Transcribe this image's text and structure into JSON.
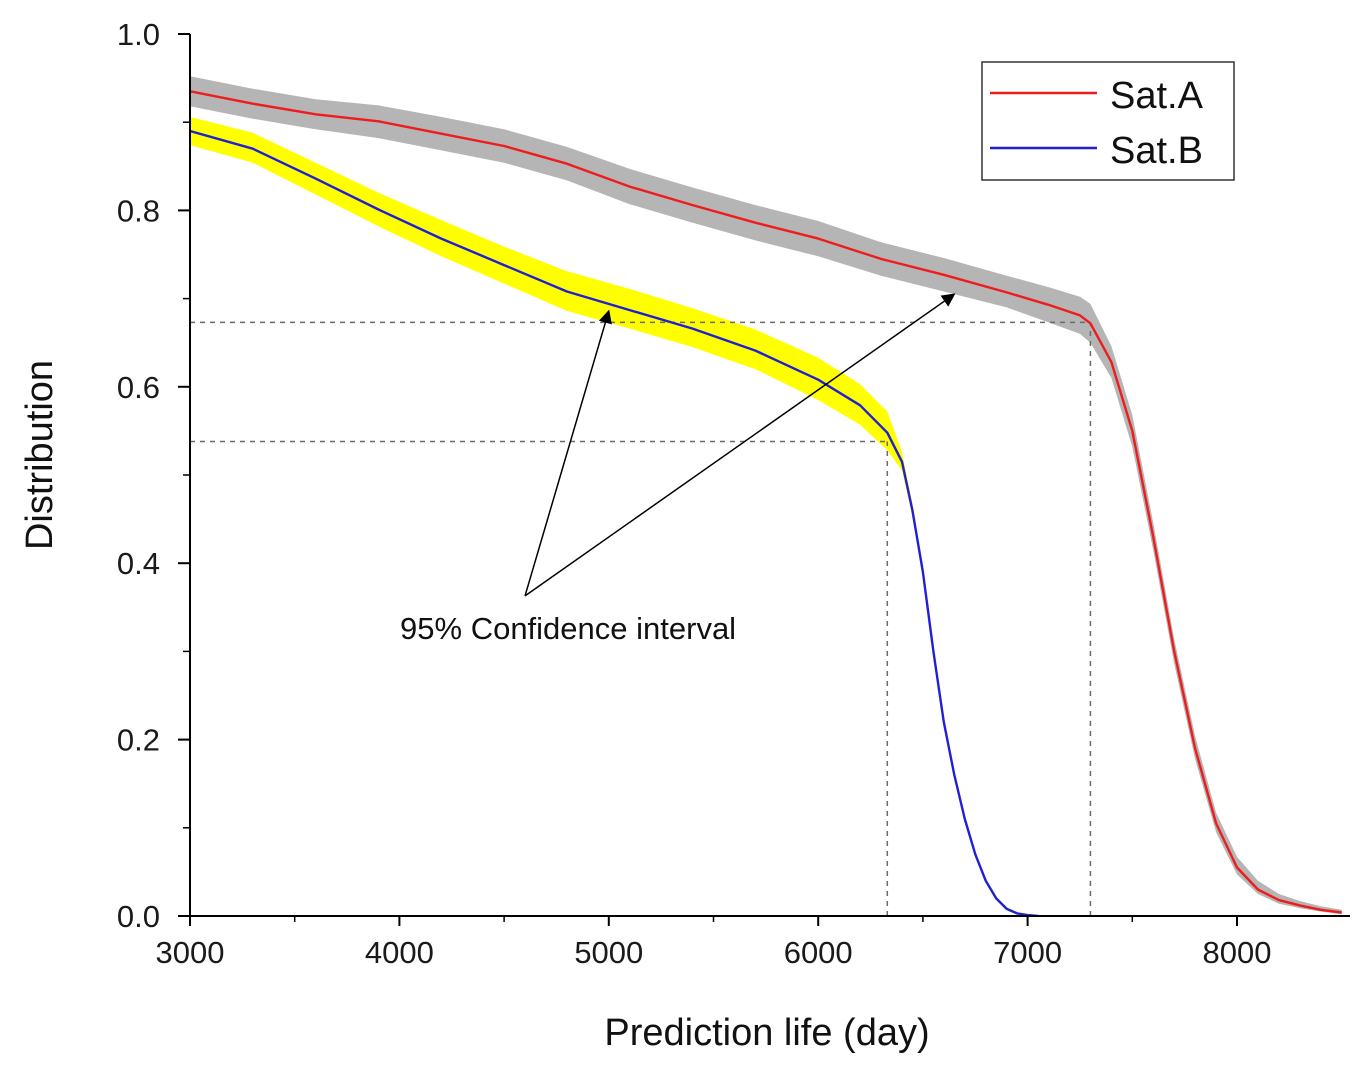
{
  "chart_data": {
    "type": "line",
    "title": "",
    "xlabel": "Prediction life (day)",
    "ylabel": "Distribution",
    "xlim": [
      3000,
      8500
    ],
    "ylim": [
      0.0,
      1.0
    ],
    "x_ticks": [
      {
        "value": 3000,
        "label": "3000"
      },
      {
        "value": 4000,
        "label": "4000"
      },
      {
        "value": 5000,
        "label": "5000"
      },
      {
        "value": 6000,
        "label": "6000"
      },
      {
        "value": 7000,
        "label": "7000"
      },
      {
        "value": 8000,
        "label": "8000"
      }
    ],
    "y_ticks": [
      {
        "value": 0.0,
        "label": "0.0"
      },
      {
        "value": 0.2,
        "label": "0.2"
      },
      {
        "value": 0.4,
        "label": "0.4"
      },
      {
        "value": 0.6,
        "label": "0.6"
      },
      {
        "value": 0.8,
        "label": "0.8"
      },
      {
        "value": 1.0,
        "label": "1.0"
      }
    ],
    "grid": false,
    "legend_position": "top-right",
    "series": [
      {
        "name": "Sat.A",
        "color": "#ee1c1c",
        "band_color": "#b5b5b5",
        "x": [
          3000,
          3300,
          3600,
          3900,
          4200,
          4500,
          4800,
          5100,
          5400,
          5700,
          6000,
          6300,
          6600,
          6900,
          7100,
          7250,
          7300,
          7400,
          7500,
          7600,
          7700,
          7800,
          7900,
          8000,
          8100,
          8200,
          8300,
          8400,
          8500
        ],
        "values": [
          0.935,
          0.921,
          0.909,
          0.901,
          0.887,
          0.873,
          0.853,
          0.827,
          0.806,
          0.786,
          0.768,
          0.745,
          0.727,
          0.707,
          0.693,
          0.681,
          0.672,
          0.628,
          0.55,
          0.43,
          0.3,
          0.19,
          0.105,
          0.055,
          0.03,
          0.018,
          0.012,
          0.007,
          0.004
        ],
        "band_lower": [
          0.918,
          0.904,
          0.892,
          0.882,
          0.868,
          0.854,
          0.834,
          0.807,
          0.786,
          0.766,
          0.748,
          0.726,
          0.708,
          0.69,
          0.673,
          0.66,
          0.65,
          0.61,
          0.532,
          0.415,
          0.286,
          0.178,
          0.095,
          0.047,
          0.025,
          0.014,
          0.009,
          0.005,
          0.002
        ],
        "band_upper": [
          0.952,
          0.938,
          0.926,
          0.919,
          0.906,
          0.892,
          0.872,
          0.847,
          0.826,
          0.806,
          0.788,
          0.764,
          0.746,
          0.726,
          0.713,
          0.702,
          0.694,
          0.646,
          0.568,
          0.446,
          0.314,
          0.204,
          0.117,
          0.067,
          0.04,
          0.025,
          0.017,
          0.011,
          0.007
        ]
      },
      {
        "name": "Sat.B",
        "color": "#1f1fd6",
        "band_color": "#ffff00",
        "x": [
          3000,
          3300,
          3600,
          3900,
          4200,
          4500,
          4800,
          5100,
          5400,
          5700,
          6000,
          6200,
          6330,
          6400,
          6450,
          6500,
          6550,
          6600,
          6650,
          6700,
          6750,
          6800,
          6850,
          6900,
          6950,
          7000,
          7050
        ],
        "values": [
          0.89,
          0.87,
          0.836,
          0.801,
          0.768,
          0.738,
          0.708,
          0.687,
          0.666,
          0.641,
          0.608,
          0.579,
          0.548,
          0.515,
          0.46,
          0.39,
          0.3,
          0.22,
          0.16,
          0.11,
          0.07,
          0.04,
          0.02,
          0.008,
          0.003,
          0.001,
          0.0
        ],
        "band_lower": [
          0.874,
          0.854,
          0.818,
          0.782,
          0.748,
          0.717,
          0.686,
          0.666,
          0.645,
          0.62,
          0.585,
          0.557,
          0.528,
          0.505,
          0.453,
          0.384,
          0.295,
          0.216,
          0.157,
          0.107,
          0.068,
          0.039,
          0.019,
          0.007,
          0.002,
          0.0,
          0.0
        ],
        "band_upper": [
          0.906,
          0.888,
          0.854,
          0.82,
          0.789,
          0.759,
          0.731,
          0.711,
          0.689,
          0.665,
          0.633,
          0.603,
          0.572,
          0.526,
          0.468,
          0.396,
          0.305,
          0.224,
          0.163,
          0.113,
          0.073,
          0.042,
          0.022,
          0.01,
          0.004,
          0.002,
          0.001
        ]
      }
    ],
    "reference_lines": [
      {
        "from": [
          3000,
          0.673
        ],
        "to": [
          7300,
          0.673
        ]
      },
      {
        "from": [
          7300,
          0.0
        ],
        "to": [
          7300,
          0.673
        ]
      },
      {
        "from": [
          3000,
          0.538
        ],
        "to": [
          6330,
          0.538
        ]
      },
      {
        "from": [
          6330,
          0.0
        ],
        "to": [
          6330,
          0.538
        ]
      }
    ],
    "annotations": [
      {
        "text": "95% Confidence interval",
        "at": [
          4600,
          0.363
        ],
        "arrows_to": [
          [
            5000,
            0.686
          ],
          [
            6650,
            0.705
          ]
        ]
      }
    ]
  }
}
